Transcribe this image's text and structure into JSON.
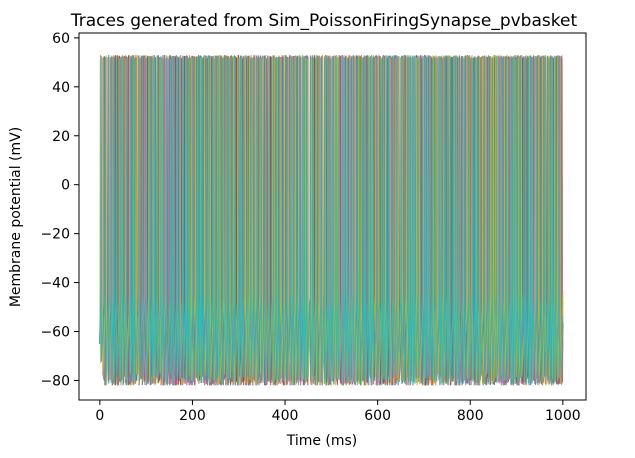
{
  "chart_data": {
    "type": "line",
    "title": "Traces generated from Sim_PoissonFiringSynapse_pvbasket",
    "xlabel": "Time (ms)",
    "ylabel": "Membrane potential (mV)",
    "xlim": [
      -45,
      1050
    ],
    "ylim": [
      -88,
      62
    ],
    "xticks": [
      0,
      200,
      400,
      600,
      800,
      1000
    ],
    "yticks": [
      -80,
      -60,
      -40,
      -20,
      0,
      20,
      40,
      60
    ],
    "grid": false,
    "legend": "none",
    "trace_summary": {
      "t_start": 0,
      "t_end": 1000,
      "resting_potential": -65,
      "spike_peak": 53,
      "trough_min": -82,
      "trough_typical": -77,
      "mean_band": -47
    },
    "series_colors": [
      "#1f77b4",
      "#ff7f0e",
      "#2ca02c",
      "#d62728",
      "#9467bd",
      "#8c564b",
      "#e377c2",
      "#7f7f7f",
      "#bcbd22",
      "#17becf"
    ]
  }
}
